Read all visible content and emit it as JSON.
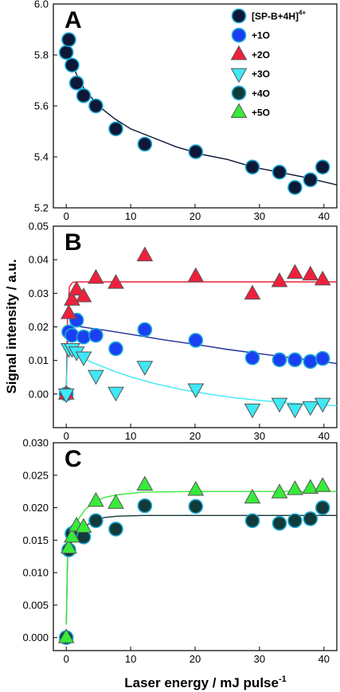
{
  "figure": {
    "ylabel": "Signal intensity / a.u.",
    "xlabel_main": "Laser energy / mJ pulse",
    "xlabel_sup": "-1"
  },
  "legend": [
    {
      "series": "[SP-B+4H]",
      "label": "[SP-B+4H]",
      "sup": "4+",
      "marker": "circle",
      "color": "#0d1736"
    },
    {
      "series": "+1O",
      "label": "+1O",
      "marker": "circle",
      "color": "#1b3ff2"
    },
    {
      "series": "+2O",
      "label": "+2O",
      "marker": "triangle-up",
      "color": "#f0203c"
    },
    {
      "series": "+3O",
      "label": "+3O",
      "marker": "triangle-down",
      "color": "#3ee8f4"
    },
    {
      "series": "+4O",
      "label": "+4O",
      "marker": "circle",
      "color": "#123a38"
    },
    {
      "series": "+5O",
      "label": "+5O",
      "marker": "triangle-up",
      "color": "#38ea3a"
    }
  ],
  "chart_data": [
    {
      "panel": "A",
      "type": "scatter",
      "xlim": [
        -2,
        42
      ],
      "ylim": [
        5.2,
        6.0
      ],
      "xticks": [
        0,
        10,
        20,
        30,
        40
      ],
      "yticks": [
        5.2,
        5.4,
        5.6,
        5.8,
        6.0
      ],
      "ytick_labels": [
        "5.2",
        "5.4",
        "5.6",
        "5.8",
        "6.0"
      ],
      "series": [
        {
          "name": "[SP-B+4H]",
          "marker": "circle",
          "color": "#0d1736",
          "x": [
            0,
            0.4,
            0.9,
            1.6,
            2.7,
            4.6,
            7.7,
            12.2,
            20.1,
            28.9,
            33.1,
            35.5,
            37.9,
            39.8
          ],
          "y": [
            5.81,
            5.86,
            5.76,
            5.69,
            5.64,
            5.6,
            5.51,
            5.45,
            5.42,
            5.36,
            5.34,
            5.28,
            5.31,
            5.36
          ],
          "fit": {
            "x": [
              0.1,
              0.3,
              0.6,
              1,
              1.5,
              2.2,
              3,
              4,
              5.5,
              7.5,
              10,
              13,
              17,
              21,
              25,
              29,
              33,
              37,
              42
            ],
            "y": [
              5.87,
              5.83,
              5.79,
              5.76,
              5.73,
              5.69,
              5.66,
              5.63,
              5.59,
              5.55,
              5.51,
              5.48,
              5.44,
              5.41,
              5.39,
              5.36,
              5.34,
              5.32,
              5.29
            ]
          }
        }
      ]
    },
    {
      "panel": "B",
      "type": "scatter",
      "xlim": [
        -2,
        42
      ],
      "ylim": [
        -0.01,
        0.05
      ],
      "xticks": [
        0,
        10,
        20,
        30,
        40
      ],
      "yticks": [
        0.0,
        0.01,
        0.02,
        0.03,
        0.04,
        0.05
      ],
      "ytick_labels": [
        "0.00",
        "0.01",
        "0.02",
        "0.03",
        "0.04",
        "0.05"
      ],
      "series": [
        {
          "name": "+1O",
          "marker": "circle",
          "color": "#1b3ff2",
          "x": [
            0,
            0.4,
            0.9,
            1.6,
            2.7,
            4.6,
            7.7,
            12.2,
            20.1,
            28.9,
            33.1,
            35.5,
            37.9,
            39.8
          ],
          "y": [
            0.0,
            0.0185,
            0.0175,
            0.022,
            0.017,
            0.0175,
            0.0135,
            0.0192,
            0.016,
            0.0108,
            0.0102,
            0.0102,
            0.0097,
            0.0106
          ],
          "fit": {
            "x": [
              0.02,
              0.2,
              0.45,
              1,
              3,
              6,
              10,
              15,
              20,
              25,
              30,
              35,
              40,
              42
            ],
            "y": [
              0.002,
              0.016,
              0.0198,
              0.0205,
              0.0198,
              0.019,
              0.0178,
              0.0162,
              0.0148,
              0.0133,
              0.012,
              0.0108,
              0.0096,
              0.0091
            ]
          }
        },
        {
          "name": "+2O",
          "marker": "triangle-up",
          "color": "#f0203c",
          "x": [
            0,
            0.4,
            0.9,
            1.6,
            2.7,
            4.6,
            7.7,
            12.2,
            20.1,
            28.9,
            33.1,
            35.5,
            37.9,
            39.8
          ],
          "y": [
            0.0,
            0.024,
            0.028,
            0.031,
            0.029,
            0.0345,
            0.033,
            0.0412,
            0.035,
            0.0298,
            0.0335,
            0.036,
            0.0355,
            0.034
          ],
          "fit": {
            "x": [
              0.02,
              0.2,
              0.5,
              1,
              2,
              4,
              10,
              20,
              30,
              42
            ],
            "y": [
              0.002,
              0.024,
              0.032,
              0.0333,
              0.0334,
              0.0334,
              0.0334,
              0.0334,
              0.0334,
              0.0334
            ]
          }
        },
        {
          "name": "+3O",
          "marker": "triangle-down",
          "color": "#3ee8f4",
          "x": [
            0,
            0.4,
            0.9,
            1.6,
            2.7,
            4.6,
            7.7,
            12.2,
            20.1,
            28.9,
            33.1,
            35.5,
            37.9,
            39.8
          ],
          "y": [
            0.0,
            0.0135,
            0.0135,
            0.0125,
            0.011,
            0.0055,
            0.0005,
            0.0082,
            0.0015,
            -0.0045,
            -0.0028,
            -0.0045,
            -0.0038,
            -0.0028
          ],
          "fit": {
            "x": [
              0.02,
              0.2,
              0.5,
              1,
              2,
              4,
              7,
              10,
              14,
              18,
              22,
              26,
              30,
              35,
              42
            ],
            "y": [
              0.002,
              0.011,
              0.0123,
              0.0121,
              0.0112,
              0.0094,
              0.0071,
              0.0051,
              0.003,
              0.0013,
              0.0,
              -0.0011,
              -0.0019,
              -0.0027,
              -0.0035
            ]
          }
        }
      ]
    },
    {
      "panel": "C",
      "type": "scatter",
      "xlim": [
        -2,
        42
      ],
      "ylim": [
        -0.002,
        0.03
      ],
      "xticks": [
        0,
        10,
        20,
        30,
        40
      ],
      "yticks": [
        0.0,
        0.005,
        0.01,
        0.015,
        0.02,
        0.025,
        0.03
      ],
      "ytick_labels": [
        "0.000",
        "0.005",
        "0.010",
        "0.015",
        "0.020",
        "0.025",
        "0.030"
      ],
      "series": [
        {
          "name": "+4O",
          "marker": "circle",
          "color": "#123a38",
          "x": [
            0,
            0.4,
            0.9,
            1.6,
            2.7,
            4.6,
            7.7,
            12.2,
            20.1,
            28.9,
            33.1,
            35.5,
            37.9,
            39.8
          ],
          "y": [
            0.0,
            0.0135,
            0.016,
            0.0165,
            0.0155,
            0.018,
            0.0167,
            0.0203,
            0.0202,
            0.018,
            0.0176,
            0.018,
            0.0183,
            0.02
          ],
          "fit": {
            "x": [
              0.02,
              0.2,
              0.5,
              1,
              2,
              3,
              4.5,
              6,
              8,
              12,
              20,
              30,
              42
            ],
            "y": [
              0.002,
              0.0125,
              0.014,
              0.015,
              0.0162,
              0.0172,
              0.0181,
              0.0185,
              0.0187,
              0.0188,
              0.0188,
              0.0188,
              0.0188
            ]
          }
        },
        {
          "name": "+5O",
          "marker": "triangle-up",
          "color": "#38ea3a",
          "x": [
            0,
            0.4,
            0.9,
            1.6,
            2.7,
            4.6,
            7.7,
            12.2,
            20.1,
            28.9,
            33.1,
            35.5,
            37.9,
            39.8
          ],
          "y": [
            0.0,
            0.0138,
            0.0155,
            0.0172,
            0.017,
            0.021,
            0.0207,
            0.0235,
            0.0227,
            0.0215,
            0.0223,
            0.0228,
            0.023,
            0.0233
          ],
          "fit": {
            "x": [
              0.02,
              0.2,
              0.5,
              1,
              2,
              3,
              4.5,
              6,
              8,
              12,
              20,
              30,
              42
            ],
            "y": [
              0.002,
              0.0133,
              0.0148,
              0.0163,
              0.0184,
              0.0198,
              0.021,
              0.0216,
              0.022,
              0.0224,
              0.0225,
              0.0225,
              0.0225
            ]
          }
        }
      ]
    }
  ]
}
